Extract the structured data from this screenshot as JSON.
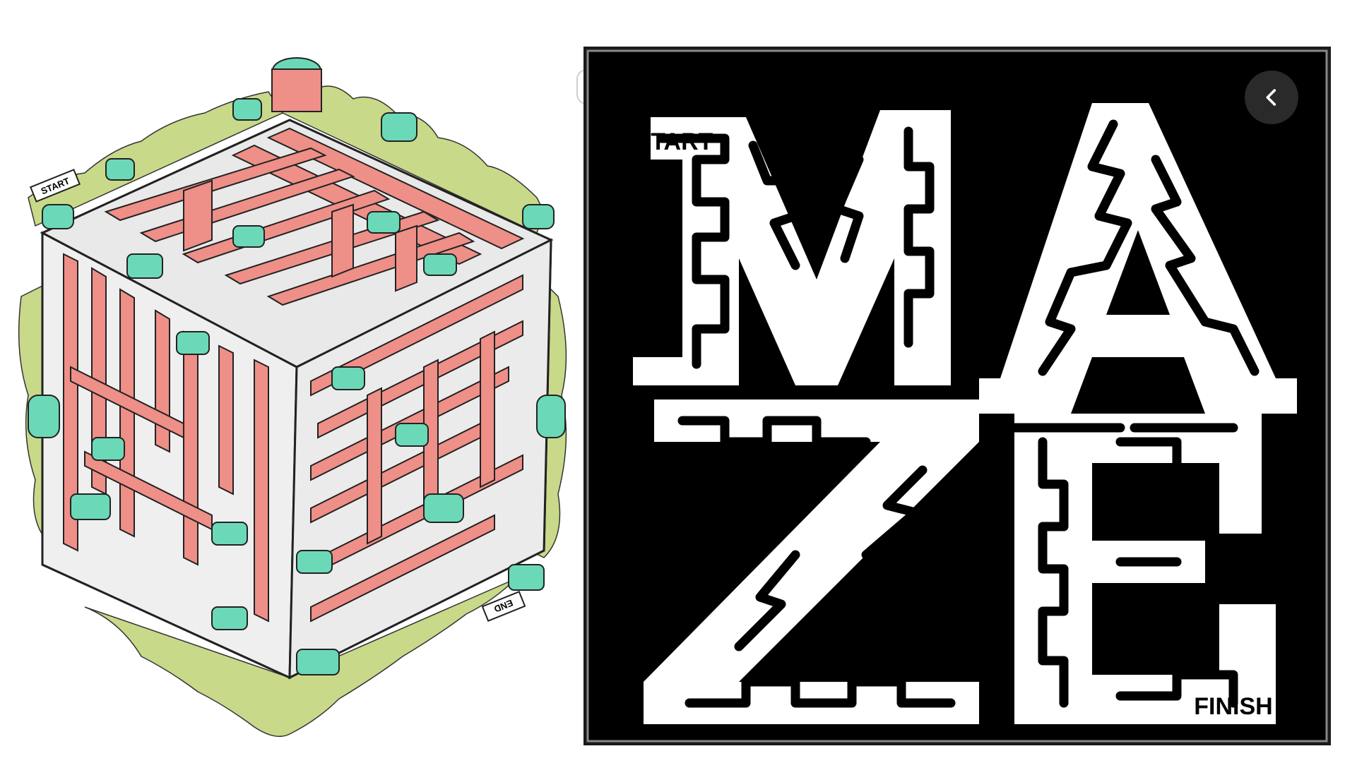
{
  "images": [
    {
      "id_label": "isometric-maze",
      "start_label": "START",
      "end_label": "END"
    },
    {
      "id_label": "maze-lettering",
      "start_label": "START",
      "finish_label": "FINISH",
      "letters": [
        "M",
        "A",
        "Z",
        "E"
      ]
    }
  ],
  "controls": {
    "back_icon": "chevron-left-icon"
  },
  "colors": {
    "building_pink": "#ee8f88",
    "roof_teal": "#6bd9b8",
    "path_grey": "#e6e6e6",
    "foliage_green": "#c8d98a",
    "maze_black": "#000000",
    "maze_white": "#ffffff"
  }
}
